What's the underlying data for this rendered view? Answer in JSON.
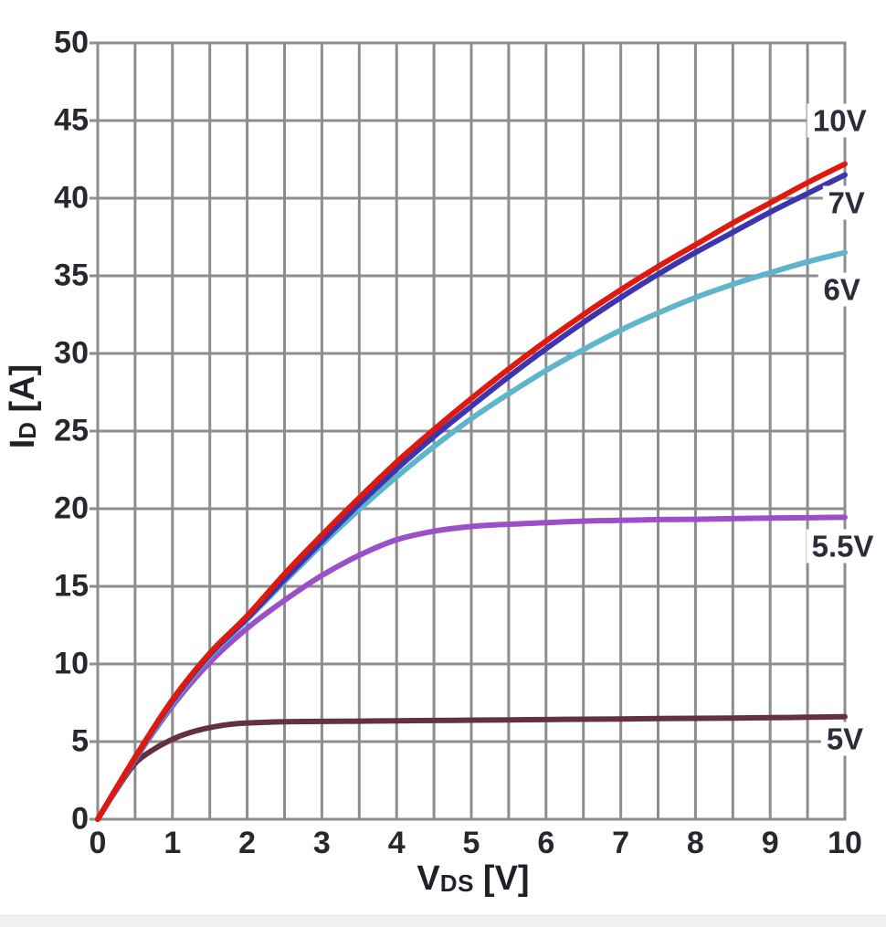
{
  "chart_data": {
    "type": "line",
    "title": "",
    "xlabel": {
      "text": "VDS [V]",
      "main": "V",
      "sub": "DS",
      "unit": "[V]"
    },
    "ylabel": {
      "text": "ID [A]",
      "main": "I",
      "sub": "D",
      "unit": "[A]"
    },
    "xlim": [
      0,
      10
    ],
    "ylim": [
      0,
      50
    ],
    "x_ticks": [
      0,
      1,
      2,
      3,
      4,
      5,
      6,
      7,
      8,
      9,
      10
    ],
    "y_ticks": [
      0,
      5,
      10,
      15,
      20,
      25,
      30,
      35,
      40,
      45,
      50
    ],
    "x_minor_grid_step": 0.5,
    "y_grid_step": 5,
    "grid": "on",
    "legend_position": "inline-labels-right-edge",
    "series": [
      {
        "name": "10V",
        "color": "#e0190e",
        "x": [
          0,
          0.5,
          1,
          1.5,
          2,
          2.5,
          3,
          3.5,
          4,
          4.5,
          5,
          5.5,
          6,
          6.5,
          7,
          7.5,
          8,
          8.5,
          9,
          9.5,
          10
        ],
        "values": [
          0,
          4.0,
          7.7,
          10.7,
          13.1,
          15.8,
          18.3,
          20.7,
          23.0,
          25.1,
          27.1,
          29.0,
          30.8,
          32.5,
          34.1,
          35.6,
          37.0,
          38.4,
          39.7,
          41.0,
          42.2
        ],
        "label": {
          "text": "10V",
          "x": 9.93,
          "y": 45.0
        }
      },
      {
        "name": "7V",
        "color": "#3c35ad",
        "x": [
          0,
          0.5,
          1,
          1.5,
          2,
          2.5,
          3,
          3.5,
          4,
          4.5,
          5,
          5.5,
          6,
          6.5,
          7,
          7.5,
          8,
          8.5,
          9,
          9.5,
          10
        ],
        "values": [
          0,
          3.95,
          7.6,
          10.6,
          12.95,
          15.45,
          17.9,
          20.3,
          22.55,
          24.65,
          26.6,
          28.5,
          30.3,
          32.0,
          33.6,
          35.1,
          36.5,
          37.8,
          39.1,
          40.3,
          41.5
        ],
        "label": {
          "text": "7V",
          "x": 10.02,
          "y": 39.7
        }
      },
      {
        "name": "6V",
        "color": "#5fb6cb",
        "x": [
          0,
          0.5,
          1,
          1.5,
          2,
          2.5,
          3,
          3.5,
          4,
          4.5,
          5,
          5.5,
          6,
          6.5,
          7,
          7.5,
          8,
          8.5,
          9,
          9.5,
          10
        ],
        "values": [
          0,
          3.9,
          7.5,
          10.5,
          12.85,
          15.3,
          17.7,
          19.95,
          22.05,
          24.0,
          25.8,
          27.4,
          28.9,
          30.25,
          31.5,
          32.6,
          33.6,
          34.45,
          35.2,
          35.9,
          36.5
        ],
        "label": {
          "text": "6V",
          "x": 9.96,
          "y": 34.1
        }
      },
      {
        "name": "5.5V",
        "color": "#9b4fc9",
        "x": [
          0,
          0.5,
          1,
          1.5,
          2,
          2.5,
          3,
          3.5,
          4,
          4.5,
          5,
          5.5,
          6,
          6.5,
          7,
          7.5,
          8,
          8.5,
          9,
          9.5,
          10
        ],
        "values": [
          0,
          3.85,
          7.3,
          10.1,
          12.3,
          14.1,
          15.7,
          17.0,
          18.0,
          18.55,
          18.85,
          19.0,
          19.1,
          19.2,
          19.25,
          19.3,
          19.32,
          19.36,
          19.4,
          19.42,
          19.45
        ],
        "label": {
          "text": "5.5V",
          "x": 9.97,
          "y": 17.6
        }
      },
      {
        "name": "5V",
        "color": "#653140",
        "x": [
          0,
          0.25,
          0.5,
          0.75,
          1,
          1.25,
          1.5,
          1.75,
          2,
          2.5,
          3,
          3.5,
          4,
          4.5,
          5,
          5.5,
          6,
          6.5,
          7,
          7.5,
          8,
          8.5,
          9,
          9.5,
          10
        ],
        "values": [
          0,
          1.9,
          3.6,
          4.5,
          5.15,
          5.6,
          5.9,
          6.1,
          6.2,
          6.28,
          6.3,
          6.32,
          6.34,
          6.36,
          6.38,
          6.4,
          6.42,
          6.44,
          6.46,
          6.48,
          6.5,
          6.52,
          6.54,
          6.57,
          6.6
        ],
        "label": {
          "text": "5V",
          "x": 10.0,
          "y": 5.15
        }
      }
    ]
  },
  "colors": {
    "grid": "#8d8d8d",
    "text": "#26282e",
    "background": "#ffffff",
    "footer_strip": "#f1f1f1"
  }
}
